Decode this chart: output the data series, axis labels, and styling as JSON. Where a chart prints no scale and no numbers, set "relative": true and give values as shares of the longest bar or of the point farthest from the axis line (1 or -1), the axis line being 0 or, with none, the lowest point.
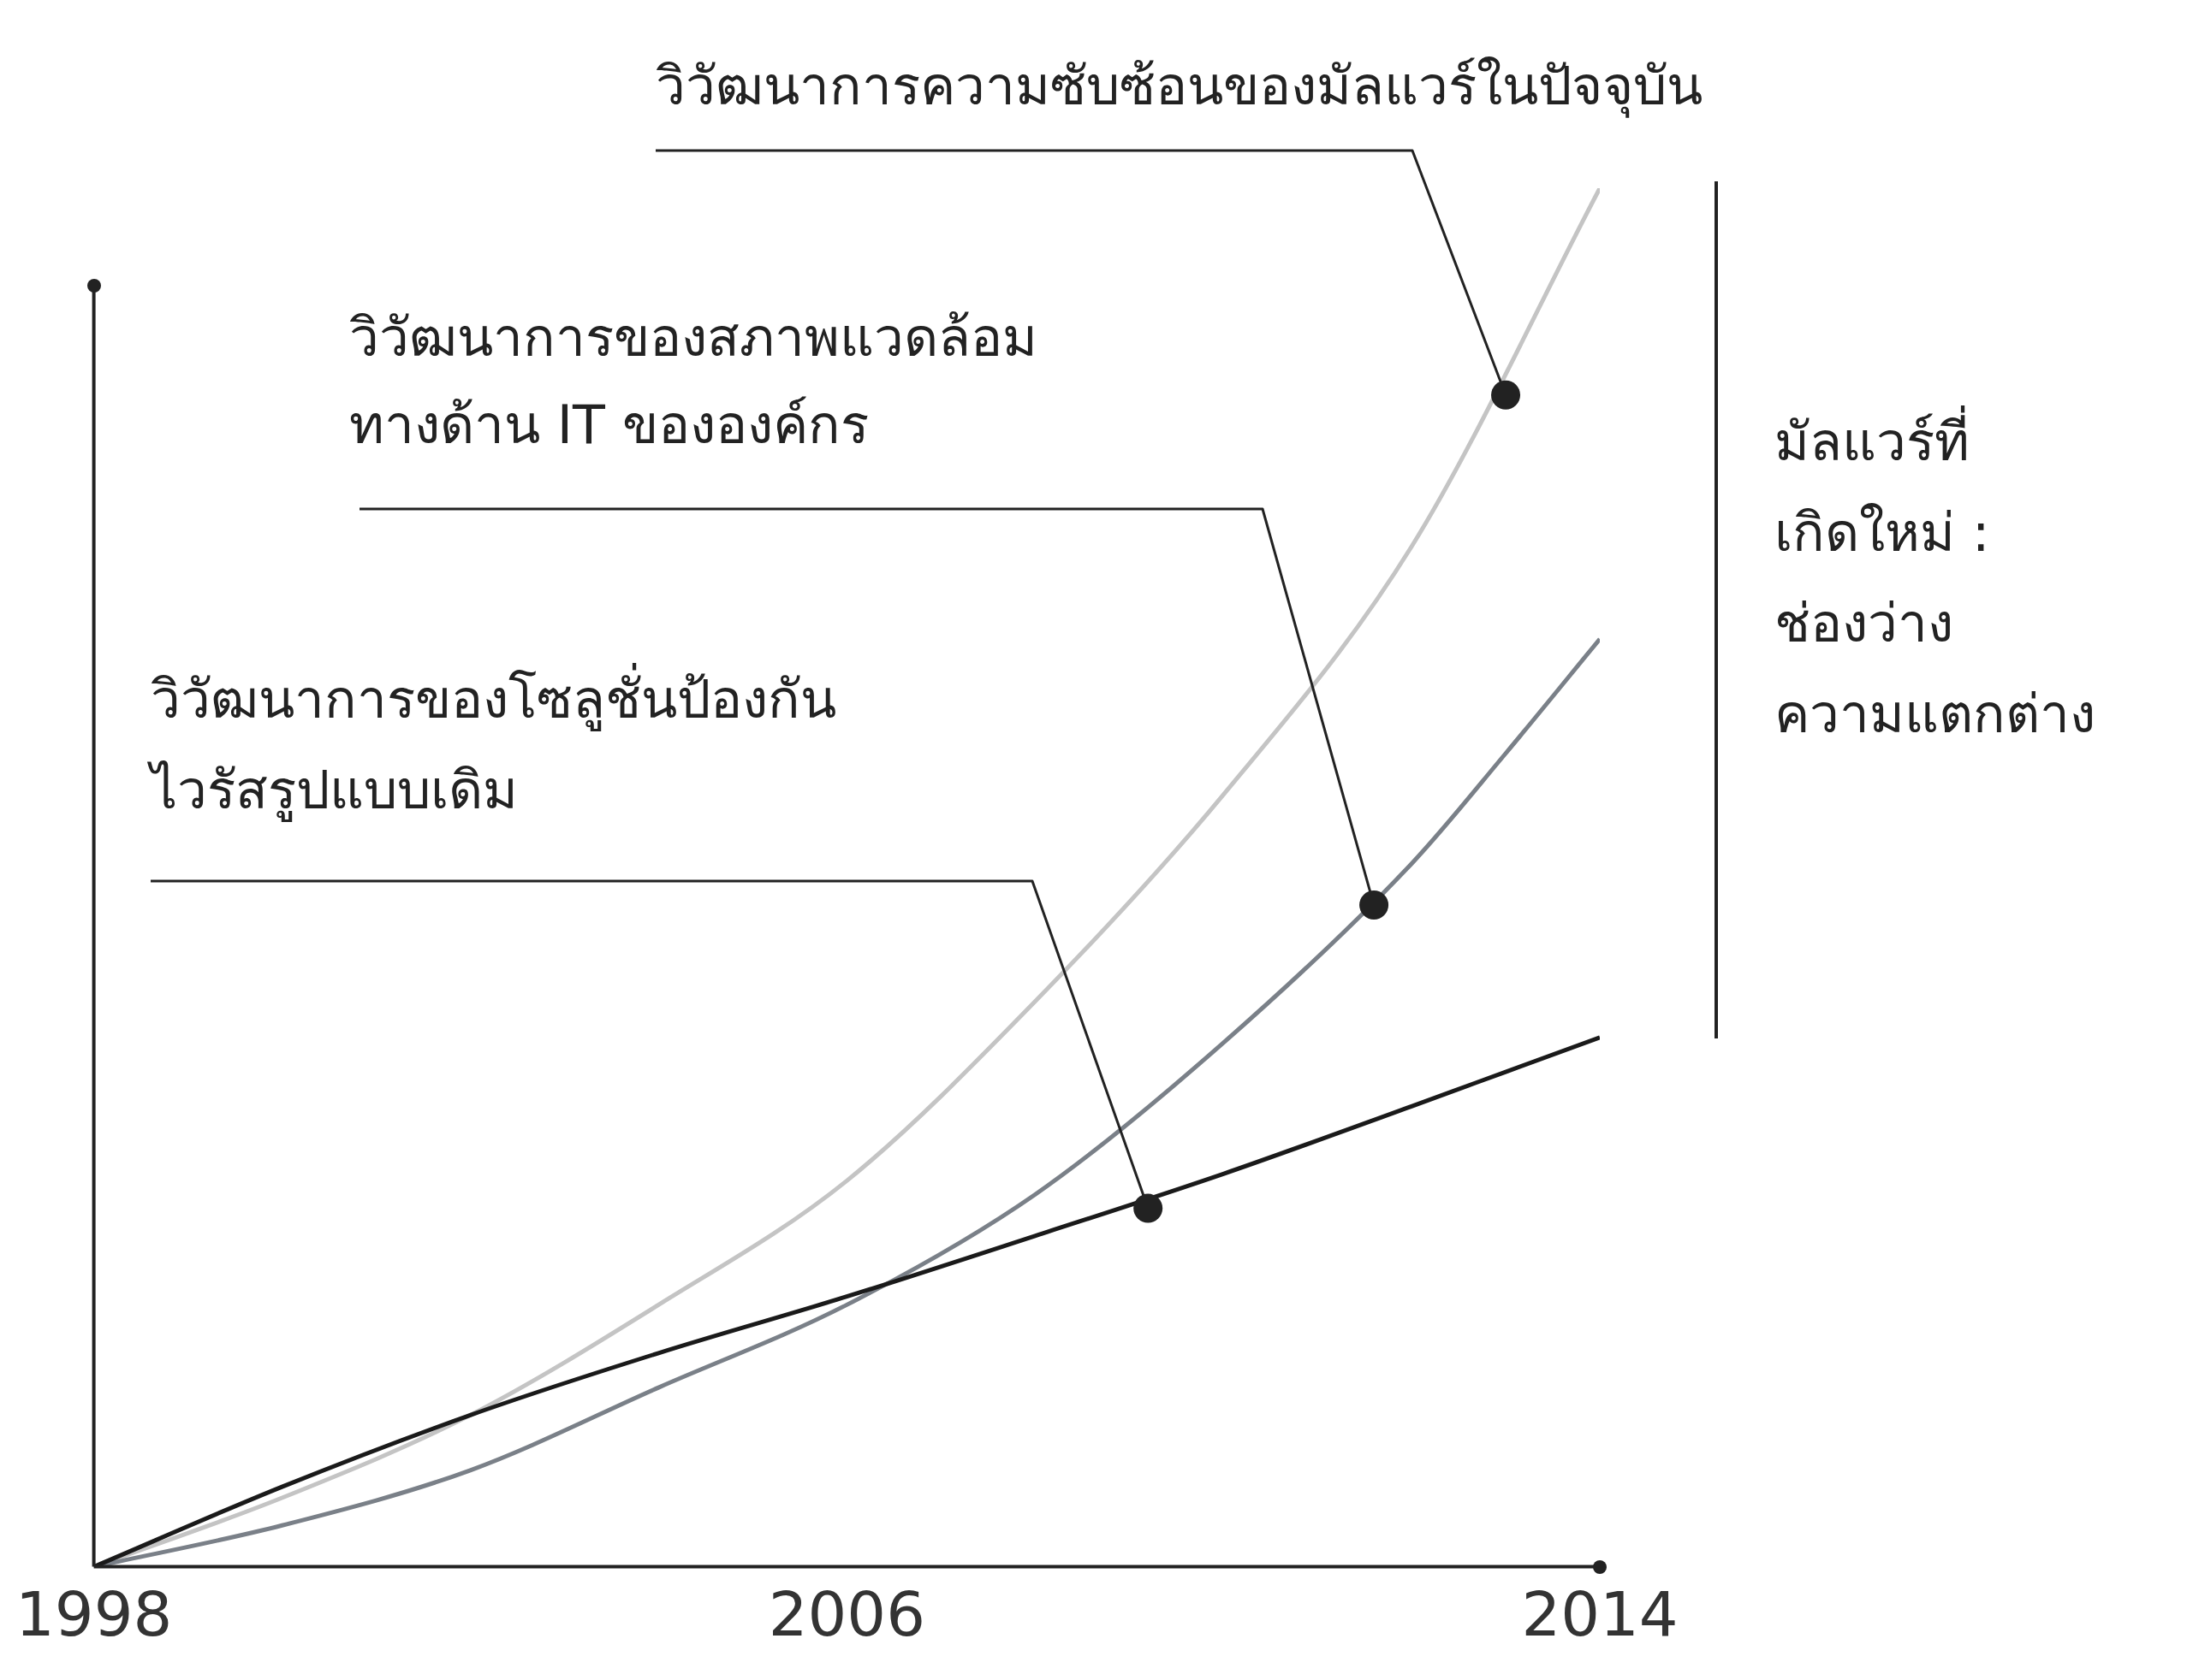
{
  "chart_data": {
    "type": "line",
    "relative": true,
    "x": [
      1998,
      2000,
      2002,
      2004,
      2006,
      2008,
      2010,
      2012,
      2013,
      2014
    ],
    "xlim": [
      1998,
      2014
    ],
    "xticks": [
      1998,
      2006,
      2014
    ],
    "grid": false,
    "legend": false,
    "marker": "none",
    "line_style": "solid",
    "series": [
      {
        "color": "#c4c4c4",
        "x": [
          1998,
          2000,
          2002,
          2004,
          2006,
          2008,
          2010,
          2012,
          2014
        ],
        "values": [
          0,
          0.05,
          0.11,
          0.19,
          0.28,
          0.41,
          0.56,
          0.74,
          1
        ]
      },
      {
        "color": "#7a8088",
        "values": [
          0,
          0.03,
          0.07,
          0.13,
          0.19,
          0.27,
          0.38,
          0.51,
          0.59,
          0.673
        ]
      },
      {
        "color": "#1a1a1a",
        "values": [
          0,
          0.058,
          0.11,
          0.155,
          0.196,
          0.24,
          0.285,
          0.334,
          0.359,
          0.384
        ]
      }
    ],
    "annotations": [
      {
        "text": "วิวัฒนาการความซับซ้อนของมัลแวร์ในปัจจุบัน",
        "x": 2013,
        "y": 0.85
      },
      {
        "text": "วิวัฒนาการของสภาพแวดล้อม\nทางด้าน IT ขององค์กร",
        "x": 2011.6,
        "y": 0.48
      },
      {
        "text": "วิวัฒนาการของโซลูชั่นป้องกัน\nไวรัสรูปแบบเดิม",
        "x": 2009.2,
        "y": 0.26
      },
      "มัลแวร์ที่\nเกิดใหม่ :\nช่องว่าง\nความแตกต่าง"
    ]
  }
}
